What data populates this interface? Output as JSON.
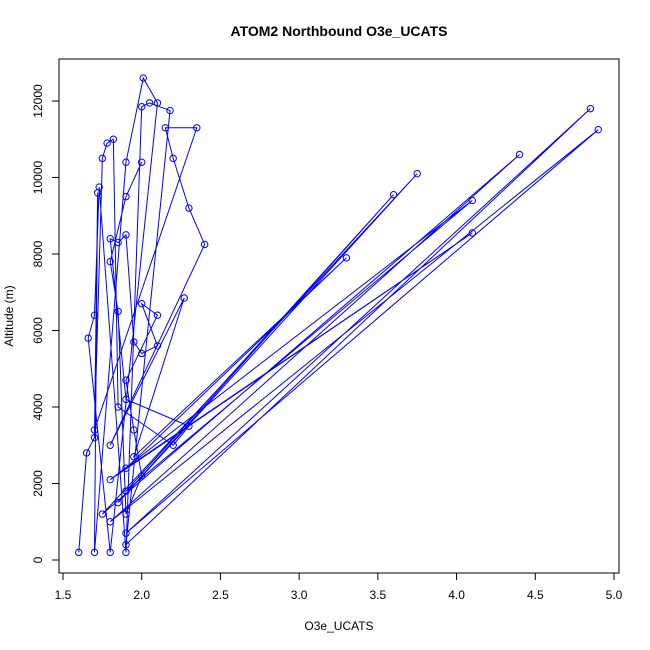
{
  "chart_data": {
    "type": "line",
    "title": "ATOM2 Northbound O3e_UCATS",
    "xlabel": "O3e_UCATS",
    "ylabel": "Altitude (m)",
    "xlim": [
      1.5,
      5.0
    ],
    "ylim": [
      0,
      12000
    ],
    "x_ticks": [
      "1.5",
      "2.0",
      "2.5",
      "3.0",
      "3.5",
      "4.0",
      "4.5",
      "5.0"
    ],
    "y_ticks": [
      "0",
      "2000",
      "4000",
      "6000",
      "8000",
      "10000",
      "12000"
    ],
    "grid": false,
    "legend": "none",
    "series": [
      {
        "color": "#0000ff",
        "marker": "open-circle",
        "points": [
          {
            "x": 1.6,
            "y": 200
          },
          {
            "x": 1.65,
            "y": 2800
          },
          {
            "x": 1.7,
            "y": 3200
          },
          {
            "x": 1.72,
            "y": 9600
          },
          {
            "x": 1.7,
            "y": 200
          },
          {
            "x": 1.9,
            "y": 10400
          },
          {
            "x": 2.01,
            "y": 12600
          },
          {
            "x": 2.1,
            "y": 11950
          },
          {
            "x": 1.8,
            "y": 200
          },
          {
            "x": 1.66,
            "y": 5800
          },
          {
            "x": 1.7,
            "y": 6400
          },
          {
            "x": 1.73,
            "y": 9750
          },
          {
            "x": 1.9,
            "y": 200
          },
          {
            "x": 2.0,
            "y": 11850
          },
          {
            "x": 2.05,
            "y": 11950
          },
          {
            "x": 2.18,
            "y": 11750
          },
          {
            "x": 1.9,
            "y": 400
          },
          {
            "x": 4.85,
            "y": 11800
          },
          {
            "x": 1.9,
            "y": 700
          },
          {
            "x": 4.9,
            "y": 11250
          },
          {
            "x": 1.8,
            "y": 1000
          },
          {
            "x": 4.4,
            "y": 10600
          },
          {
            "x": 1.75,
            "y": 1200
          },
          {
            "x": 3.75,
            "y": 10100
          },
          {
            "x": 1.85,
            "y": 1500
          },
          {
            "x": 3.6,
            "y": 9550
          },
          {
            "x": 1.9,
            "y": 1800
          },
          {
            "x": 4.1,
            "y": 9400
          },
          {
            "x": 1.8,
            "y": 2100
          },
          {
            "x": 4.1,
            "y": 8550
          },
          {
            "x": 1.9,
            "y": 2400
          },
          {
            "x": 3.3,
            "y": 7900
          },
          {
            "x": 1.95,
            "y": 2700
          },
          {
            "x": 2.27,
            "y": 6850
          },
          {
            "x": 1.8,
            "y": 3000
          },
          {
            "x": 2.4,
            "y": 8250
          },
          {
            "x": 2.3,
            "y": 9200
          },
          {
            "x": 2.2,
            "y": 10500
          },
          {
            "x": 2.15,
            "y": 11300
          },
          {
            "x": 2.35,
            "y": 11300
          },
          {
            "x": 1.7,
            "y": 3400
          },
          {
            "x": 1.75,
            "y": 10500
          },
          {
            "x": 1.78,
            "y": 10900
          },
          {
            "x": 1.82,
            "y": 11000
          },
          {
            "x": 1.85,
            "y": 4000
          },
          {
            "x": 2.2,
            "y": 3000
          },
          {
            "x": 2.3,
            "y": 3500
          },
          {
            "x": 1.9,
            "y": 4200
          },
          {
            "x": 1.8,
            "y": 8400
          },
          {
            "x": 1.85,
            "y": 8300
          },
          {
            "x": 1.9,
            "y": 8500
          },
          {
            "x": 1.95,
            "y": 5700
          },
          {
            "x": 2.0,
            "y": 5400
          },
          {
            "x": 2.1,
            "y": 5600
          },
          {
            "x": 2.0,
            "y": 6700
          },
          {
            "x": 2.1,
            "y": 6400
          },
          {
            "x": 1.9,
            "y": 4700
          },
          {
            "x": 1.95,
            "y": 3400
          },
          {
            "x": 2.0,
            "y": 2200
          },
          {
            "x": 1.9,
            "y": 1200
          },
          {
            "x": 1.85,
            "y": 6500
          },
          {
            "x": 1.8,
            "y": 7800
          },
          {
            "x": 1.9,
            "y": 9500
          },
          {
            "x": 2.0,
            "y": 10400
          }
        ]
      }
    ]
  }
}
